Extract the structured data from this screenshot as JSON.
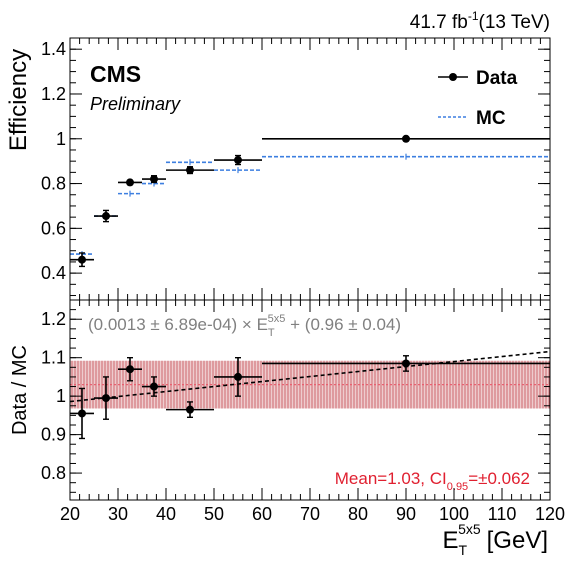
{
  "header": {
    "lumi": "41.7 fb",
    "lumi_exp": "-1",
    "energy": "(13 TeV)"
  },
  "labels": {
    "experiment": "CMS",
    "status": "Preliminary"
  },
  "legend": {
    "data_label": "Data",
    "mc_label": "MC"
  },
  "fit": {
    "open": "(0.0013 ± 6.89e-04) × E",
    "sub": "T",
    "sup": "5x5",
    "close": " + (0.96 ± 0.04)"
  },
  "band_label": {
    "prefix": "Mean=1.03, CI",
    "sub": "0.95",
    "suffix": "=±0.062"
  },
  "colors": {
    "data": "#000000",
    "mc": "#3d7fe0",
    "band": "#b31722",
    "band_text": "#e02030",
    "fit_text": "#808080"
  },
  "chart_data": [
    {
      "type": "scatter",
      "ylabel": "Efficiency",
      "xlim": [
        20,
        120
      ],
      "ylim": [
        0.28,
        1.45
      ],
      "yticks": [
        0.4,
        0.6,
        0.8,
        1.0,
        1.2,
        1.4
      ],
      "ytick_labels": [
        "0.4",
        "0.6",
        "0.8",
        "1",
        "1.2",
        "1.4"
      ],
      "series": [
        {
          "name": "Data",
          "points": [
            {
              "x": 22.5,
              "xlo": 20,
              "xhi": 25,
              "y": 0.46,
              "ylo": 0.43,
              "yhi": 0.49
            },
            {
              "x": 27.5,
              "xlo": 25,
              "xhi": 30,
              "y": 0.655,
              "ylo": 0.63,
              "yhi": 0.68
            },
            {
              "x": 32.5,
              "xlo": 30,
              "xhi": 35,
              "y": 0.805,
              "ylo": 0.795,
              "yhi": 0.815
            },
            {
              "x": 37.5,
              "xlo": 35,
              "xhi": 40,
              "y": 0.82,
              "ylo": 0.805,
              "yhi": 0.835
            },
            {
              "x": 45,
              "xlo": 40,
              "xhi": 50,
              "y": 0.86,
              "ylo": 0.845,
              "yhi": 0.875
            },
            {
              "x": 55,
              "xlo": 50,
              "xhi": 60,
              "y": 0.905,
              "ylo": 0.885,
              "yhi": 0.925
            },
            {
              "x": 90,
              "xlo": 60,
              "xhi": 120,
              "y": 1.0,
              "ylo": 1.0,
              "yhi": 1.0
            }
          ]
        },
        {
          "name": "MC",
          "points": [
            {
              "x": 22.5,
              "xlo": 20,
              "xhi": 25,
              "y": 0.485
            },
            {
              "x": 27.5,
              "xlo": 25,
              "xhi": 30,
              "y": 0.655
            },
            {
              "x": 32.5,
              "xlo": 30,
              "xhi": 35,
              "y": 0.755
            },
            {
              "x": 37.5,
              "xlo": 35,
              "xhi": 40,
              "y": 0.8
            },
            {
              "x": 45,
              "xlo": 40,
              "xhi": 50,
              "y": 0.895
            },
            {
              "x": 55,
              "xlo": 50,
              "xhi": 60,
              "y": 0.86
            },
            {
              "x": 90,
              "xlo": 60,
              "xhi": 120,
              "y": 0.92
            }
          ]
        }
      ]
    },
    {
      "type": "scatter",
      "xlabel": "E",
      "xlabel_sub": "T",
      "xlabel_sup": "5x5",
      "xlabel_unit": "[GeV]",
      "ylabel": "Data / MC",
      "xlim": [
        20,
        120
      ],
      "ylim": [
        0.73,
        1.25
      ],
      "xticks": [
        20,
        30,
        40,
        50,
        60,
        70,
        80,
        90,
        100,
        110,
        120
      ],
      "xtick_labels": [
        "20",
        "30",
        "40",
        "50",
        "60",
        "70",
        "80",
        "90",
        "100",
        "110",
        "120"
      ],
      "yticks": [
        0.8,
        0.9,
        1.0,
        1.1,
        1.2
      ],
      "ytick_labels": [
        "0.8",
        "0.9",
        "1",
        "1.1",
        "1.2"
      ],
      "band": {
        "mean": 1.03,
        "half_width": 0.062
      },
      "fit_line": {
        "slope": 0.0013,
        "intercept": 0.96
      },
      "series": [
        {
          "name": "Data",
          "points": [
            {
              "x": 22.5,
              "xlo": 20,
              "xhi": 25,
              "y": 0.955,
              "ylo": 0.89,
              "yhi": 1.02
            },
            {
              "x": 27.5,
              "xlo": 25,
              "xhi": 30,
              "y": 0.995,
              "ylo": 0.94,
              "yhi": 1.05
            },
            {
              "x": 32.5,
              "xlo": 30,
              "xhi": 35,
              "y": 1.07,
              "ylo": 1.04,
              "yhi": 1.1
            },
            {
              "x": 37.5,
              "xlo": 35,
              "xhi": 40,
              "y": 1.025,
              "ylo": 1.0,
              "yhi": 1.05
            },
            {
              "x": 45,
              "xlo": 40,
              "xhi": 50,
              "y": 0.965,
              "ylo": 0.945,
              "yhi": 0.985
            },
            {
              "x": 55,
              "xlo": 50,
              "xhi": 60,
              "y": 1.05,
              "ylo": 1.0,
              "yhi": 1.1
            },
            {
              "x": 90,
              "xlo": 60,
              "xhi": 120,
              "y": 1.085,
              "ylo": 1.065,
              "yhi": 1.105
            }
          ]
        }
      ]
    }
  ]
}
